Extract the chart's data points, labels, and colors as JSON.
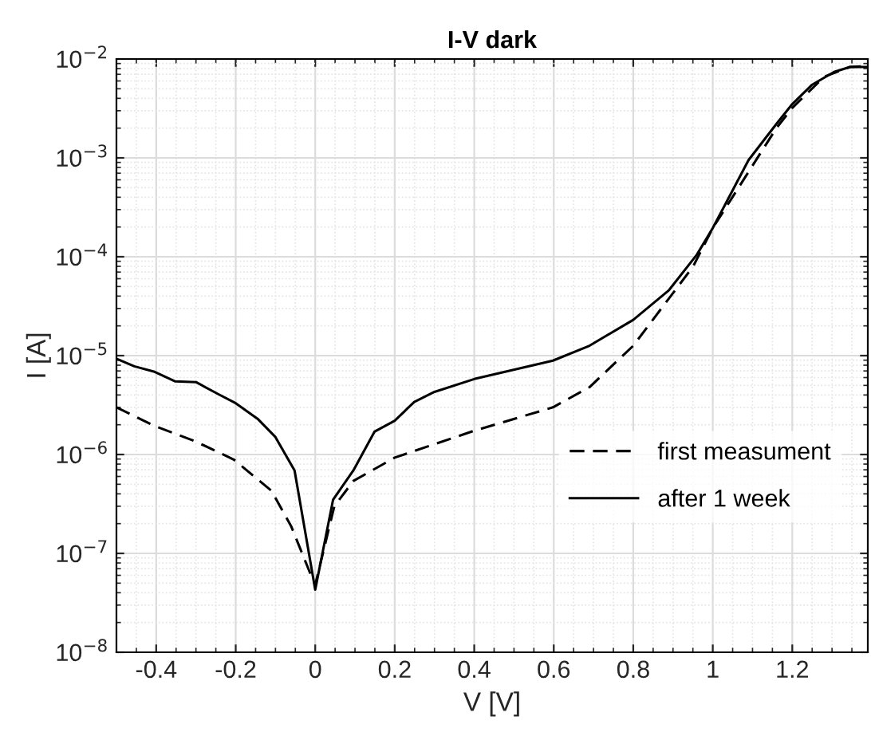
{
  "chart_data": {
    "type": "line",
    "title": "I-V dark",
    "xlabel": "V [V]",
    "ylabel": "I [A]",
    "log": "y",
    "grid": true,
    "legend": "bottom right",
    "xlim": [
      -0.5,
      1.39
    ],
    "xticks": [
      -0.4,
      -0.2,
      0,
      0.2,
      0.4,
      0.6,
      0.8,
      1,
      1.2
    ],
    "ylim": [
      1e-08,
      0.01
    ],
    "yticks": [
      {
        "value": 1e-08,
        "label": "10$^{−8}$"
      },
      {
        "value": 1e-07,
        "label": "10$^{−7}$"
      },
      {
        "value": 1e-06,
        "label": "10$^{−6}$"
      },
      {
        "value": 1e-05,
        "label": "10$^{−5}$"
      },
      {
        "value": 0.0001,
        "label": "10$^{−4}$"
      },
      {
        "value": 0.001,
        "label": "10$^{−3}$"
      },
      {
        "value": 0.01,
        "label": "10$^{−2}$"
      }
    ],
    "series": [
      {
        "name": "first measument",
        "color": "#000000",
        "line_style": "dashed",
        "x": [
          -0.5,
          -0.405,
          -0.3,
          -0.205,
          -0.11,
          -0.06,
          -0.012,
          0,
          0.048,
          0.096,
          0.2,
          0.4,
          0.598,
          0.69,
          0.8,
          0.89,
          0.95,
          1.0,
          1.16,
          1.2,
          1.28,
          1.345,
          1.39
        ],
        "values": [
          3e-06,
          1.95e-06,
          1.35e-06,
          8.9e-07,
          4.3e-07,
          1.86e-07,
          6.2e-08,
          4.8e-08,
          3e-07,
          5.4e-07,
          9.3e-07,
          1.74e-06,
          3e-06,
          4.8e-06,
          1.26e-05,
          3.8e-05,
          7.9e-05,
          0.000195,
          0.002,
          0.0032,
          0.0066,
          0.0083,
          0.0085
        ]
      },
      {
        "name": "after 1 week",
        "color": "#000000",
        "line_style": "solid",
        "x": [
          -0.5,
          -0.455,
          -0.406,
          -0.353,
          -0.3,
          -0.245,
          -0.2,
          -0.145,
          -0.1,
          -0.052,
          0,
          0.045,
          0.096,
          0.149,
          0.2,
          0.249,
          0.3,
          0.4,
          0.598,
          0.69,
          0.8,
          0.89,
          0.96,
          1.0,
          1.09,
          1.16,
          1.2,
          1.25,
          1.305,
          1.345,
          1.39
        ],
        "values": [
          9.3e-06,
          7.8e-06,
          6.9e-06,
          5.5e-06,
          5.4e-06,
          4.1e-06,
          3.3e-06,
          2.3e-06,
          1.5e-06,
          6.9e-07,
          4.3e-08,
          3.5e-07,
          6.9e-07,
          1.7e-06,
          2.2e-06,
          3.4e-06,
          4.3e-06,
          5.8e-06,
          8.9e-06,
          1.26e-05,
          2.3e-05,
          4.6e-05,
          0.000105,
          0.000195,
          0.00095,
          0.0022,
          0.0035,
          0.0055,
          0.0074,
          0.0083,
          0.0083
        ]
      }
    ]
  }
}
